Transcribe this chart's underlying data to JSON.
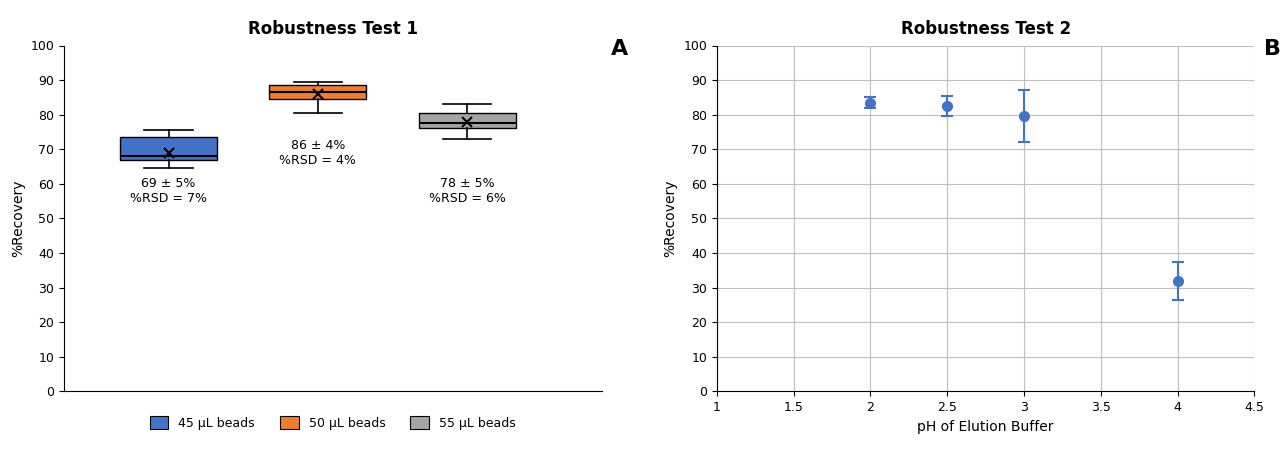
{
  "title1": "Robustness Test 1",
  "title2": "Robustness Test 2",
  "label_A": "A",
  "label_B": "B",
  "box1": {
    "whislo": 64.5,
    "q1": 67.0,
    "med": 68.0,
    "q3": 73.5,
    "whishi": 75.5,
    "mean": 69.0,
    "color": "#4472C4",
    "label": "45 μL beads",
    "annotation": "69 ± 5%\n%RSD = 7%",
    "ann_x": 1,
    "ann_y": 62.0
  },
  "box2": {
    "whislo": 80.5,
    "q1": 84.5,
    "med": 86.5,
    "q3": 88.5,
    "whishi": 89.5,
    "mean": 86.0,
    "color": "#ED7D31",
    "label": "50 μL beads",
    "annotation": "86 ± 4%\n%RSD = 4%",
    "ann_x": 2,
    "ann_y": 73.0
  },
  "box3": {
    "whislo": 73.0,
    "q1": 76.0,
    "med": 77.5,
    "q3": 80.5,
    "whishi": 83.0,
    "mean": 78.0,
    "color": "#A5A5A5",
    "label": "55 μL beads",
    "annotation": "78 ± 5%\n%RSD = 6%",
    "ann_x": 3,
    "ann_y": 62.0
  },
  "scatter_x": [
    2.0,
    2.5,
    3.0,
    4.0
  ],
  "scatter_y": [
    83.5,
    82.5,
    79.5,
    32.0
  ],
  "scatter_yerr": [
    1.5,
    3.0,
    7.5,
    5.5
  ],
  "scatter_color": "#4472C4",
  "xlabel2": "pH of Elution Buffer",
  "ylabel": "%Recovery",
  "ylim": [
    0,
    100
  ],
  "xlim1": [
    0.3,
    3.9
  ],
  "xlim2": [
    1,
    4.5
  ],
  "bg_color": "#FFFFFF",
  "grid_color": "#BFBFBF",
  "title_fontsize": 12,
  "label_fontsize": 10,
  "tick_fontsize": 9,
  "ann_fontsize": 9,
  "legend_fontsize": 9
}
